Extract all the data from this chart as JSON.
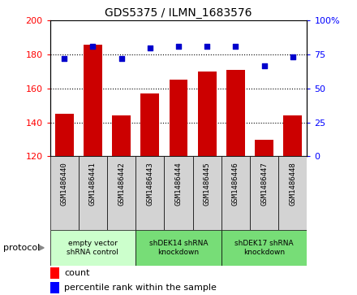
{
  "title": "GDS5375 / ILMN_1683576",
  "samples": [
    "GSM1486440",
    "GSM1486441",
    "GSM1486442",
    "GSM1486443",
    "GSM1486444",
    "GSM1486445",
    "GSM1486446",
    "GSM1486447",
    "GSM1486448"
  ],
  "counts": [
    145,
    186,
    144,
    157,
    165,
    170,
    171,
    130,
    144
  ],
  "percentiles": [
    72,
    81,
    72,
    80,
    81,
    81,
    81,
    67,
    73
  ],
  "ymin": 120,
  "ymax": 200,
  "y2min": 0,
  "y2max": 100,
  "yticks": [
    120,
    140,
    160,
    180,
    200
  ],
  "y2ticks": [
    0,
    25,
    50,
    75,
    100
  ],
  "bar_color": "#CC0000",
  "dot_color": "#0000CC",
  "groups": [
    {
      "label": "empty vector\nshRNA control",
      "start": 0,
      "end": 3,
      "color": "#ccffcc"
    },
    {
      "label": "shDEK14 shRNA\nknockdown",
      "start": 3,
      "end": 6,
      "color": "#77dd77"
    },
    {
      "label": "shDEK17 shRNA\nknockdown",
      "start": 6,
      "end": 9,
      "color": "#77dd77"
    }
  ],
  "protocol_label": "protocol",
  "legend_count_label": "count",
  "legend_pct_label": "percentile rank within the sample",
  "background_color": "#ffffff",
  "sample_box_color": "#d3d3d3"
}
